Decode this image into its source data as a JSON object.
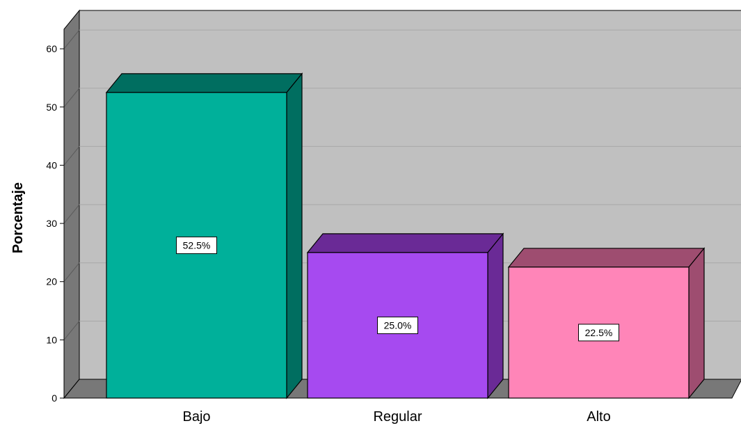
{
  "chart_data": {
    "type": "bar",
    "categories": [
      "Bajo",
      "Regular",
      "Alto"
    ],
    "values": [
      52.5,
      25.0,
      22.5
    ],
    "data_labels": [
      "52.5%",
      "25.0%",
      "22.5%"
    ],
    "ylabel": "Porcentaje",
    "ylim": [
      0,
      65
    ],
    "yticks": [
      "0",
      "10",
      "20",
      "30",
      "40",
      "50",
      "60"
    ],
    "grid": true,
    "legend": "none",
    "colors": {
      "bars": [
        {
          "front": "#00b09a",
          "top": "#006e60",
          "side": "#006e60"
        },
        {
          "front": "#a64af0",
          "top": "#6a2a96",
          "side": "#6a2a96"
        },
        {
          "front": "#ff85b8",
          "top": "#9e4d70",
          "side": "#9e4d70"
        }
      ],
      "wall": "#c0c0c0",
      "side_wall": "#787878",
      "floor": "#787878",
      "grid": "#a8a8a8"
    }
  }
}
